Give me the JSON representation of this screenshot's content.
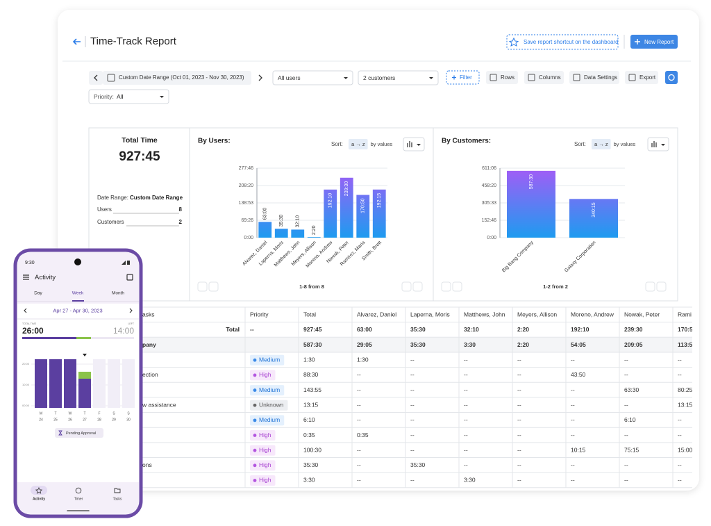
{
  "header": {
    "title": "Time-Track Report",
    "save_shortcut": "Save report shortcut on the dashboard",
    "new_report": "New Report"
  },
  "toolbar": {
    "date_range": "Custom Date Range (Oct 01, 2023 - Nov 30, 2023)",
    "users": "All users",
    "customers": "2 customers",
    "filter": "Filter",
    "rows": "Rows",
    "columns": "Columns",
    "data_settings": "Data Settings",
    "export": "Export",
    "priority_label": "Priority:",
    "priority_value": "All"
  },
  "summary": {
    "title": "Total Time",
    "total": "927:45",
    "date_range_label": "Date Range:",
    "date_range_value": "Custom Date Range",
    "users_label": "Users",
    "users_value": 8,
    "customers_label": "Customers",
    "customers_value": 2
  },
  "chart_data": [
    {
      "type": "bar",
      "title": "By Users:",
      "sort_label": "Sort:",
      "sort_order": "a → z",
      "sort_mode": "by values",
      "categories": [
        "Alvarez, Daniel",
        "Laperna, Moris",
        "Matthews, John",
        "Meyers, Allison",
        "Moreno, Andrew",
        "Nowak, Peter",
        "Ramirez, Maria",
        "Smith, Brett"
      ],
      "values": [
        63,
        35.5,
        32.1667,
        2.3333,
        192.1667,
        239.5,
        170.8333,
        192.25
      ],
      "value_labels": [
        "63:00",
        "35:30",
        "32:10",
        "2:20",
        "192:10",
        "239:30",
        "170:50",
        "192:15"
      ],
      "ylim": [
        0,
        277.7667
      ],
      "yticks": [
        {
          "value": 0,
          "label": "0:00"
        },
        {
          "value": 69.4333,
          "label": "69:26"
        },
        {
          "value": 138.8833,
          "label": "138:53"
        },
        {
          "value": 208.3333,
          "label": "208:20"
        },
        {
          "value": 277.7667,
          "label": "277:46"
        }
      ],
      "gradient": [
        "#a35cf6",
        "#1e9bf0"
      ],
      "grid": true,
      "pager": "1-8 from 8"
    },
    {
      "type": "bar",
      "title": "By Customers:",
      "sort_label": "Sort:",
      "sort_order": "a → z",
      "sort_mode": "by values",
      "categories": [
        "Big Bang Company",
        "Galaxy Corporation"
      ],
      "values": [
        587.5,
        340.25
      ],
      "value_labels": [
        "587:30",
        "340:15"
      ],
      "ylim": [
        0,
        611.1
      ],
      "yticks": [
        {
          "value": 0,
          "label": "0:00"
        },
        {
          "value": 152.7667,
          "label": "152:46"
        },
        {
          "value": 305.55,
          "label": "305:33"
        },
        {
          "value": 458.3333,
          "label": "458:20"
        },
        {
          "value": 611.1,
          "label": "611:06"
        }
      ],
      "gradient": [
        "#a35cf6",
        "#1e9bf0"
      ],
      "grid": true,
      "pager": "1-2 from 2"
    }
  ],
  "table": {
    "columns": [
      "asks",
      "Priority",
      "Total",
      "Alvarez, Daniel",
      "Laperna, Moris",
      "Matthews, John",
      "Meyers, Allison",
      "Moreno, Andrew",
      "Nowak, Peter",
      "Rami"
    ],
    "rows": [
      {
        "kind": "total",
        "task": "Total",
        "priority": "--",
        "cells": [
          "927:45",
          "63:00",
          "35:30",
          "32:10",
          "2:20",
          "192:10",
          "239:30",
          "170:5"
        ]
      },
      {
        "kind": "group",
        "task": "pany",
        "cells": [
          "587:30",
          "29:05",
          "35:30",
          "3:30",
          "2:20",
          "54:05",
          "209:05",
          "113:5"
        ]
      },
      {
        "kind": "task",
        "priority": "Medium",
        "cells": [
          "1:30",
          "1:30",
          "--",
          "--",
          "--",
          "--",
          "--",
          "--"
        ]
      },
      {
        "kind": "task",
        "task": "ection",
        "priority": "High",
        "cells": [
          "88:30",
          "--",
          "--",
          "--",
          "--",
          "43:50",
          "--",
          "--"
        ]
      },
      {
        "kind": "task",
        "priority": "Medium",
        "cells": [
          "143:55",
          "--",
          "--",
          "--",
          "--",
          "--",
          "63:30",
          "80:25"
        ]
      },
      {
        "kind": "task",
        "task": "w assistance",
        "priority": "Unknown",
        "cells": [
          "13:15",
          "--",
          "--",
          "--",
          "--",
          "--",
          "--",
          "13:15"
        ]
      },
      {
        "kind": "task",
        "priority": "Medium",
        "cells": [
          "6:10",
          "--",
          "--",
          "--",
          "--",
          "--",
          "6:10",
          "--"
        ]
      },
      {
        "kind": "task",
        "priority": "High",
        "cells": [
          "0:35",
          "0:35",
          "--",
          "--",
          "--",
          "--",
          "--",
          "--"
        ]
      },
      {
        "kind": "task",
        "priority": "High",
        "cells": [
          "100:30",
          "--",
          "--",
          "--",
          "--",
          "10:15",
          "75:15",
          "15:00"
        ]
      },
      {
        "kind": "task",
        "task": "ons",
        "priority": "High",
        "cells": [
          "35:30",
          "--",
          "35:30",
          "--",
          "--",
          "--",
          "--",
          "--"
        ]
      },
      {
        "kind": "task",
        "priority": "High",
        "cells": [
          "3:30",
          "--",
          "--",
          "3:30",
          "--",
          "--",
          "--",
          "--"
        ]
      }
    ]
  },
  "phone": {
    "time": "9:30",
    "title": "Activity",
    "tabs": [
      "Day",
      "Week",
      "Month"
    ],
    "date_range": "Apr 27 - Apr 30, 2023",
    "total_label": "TOTAL TIME",
    "total": "26:00",
    "left_label": "LEFT",
    "left": "14:00",
    "axis_labels": [
      "20:00",
      "10:00",
      "00:00"
    ],
    "days": [
      "M",
      "T",
      "W",
      "T",
      "F",
      "S",
      "S"
    ],
    "dates": [
      "24",
      "25",
      "26",
      "27",
      "28",
      "29",
      "30"
    ],
    "pending": "Pending Approval",
    "nav": [
      "Activity",
      "Timer",
      "Tasks"
    ]
  }
}
